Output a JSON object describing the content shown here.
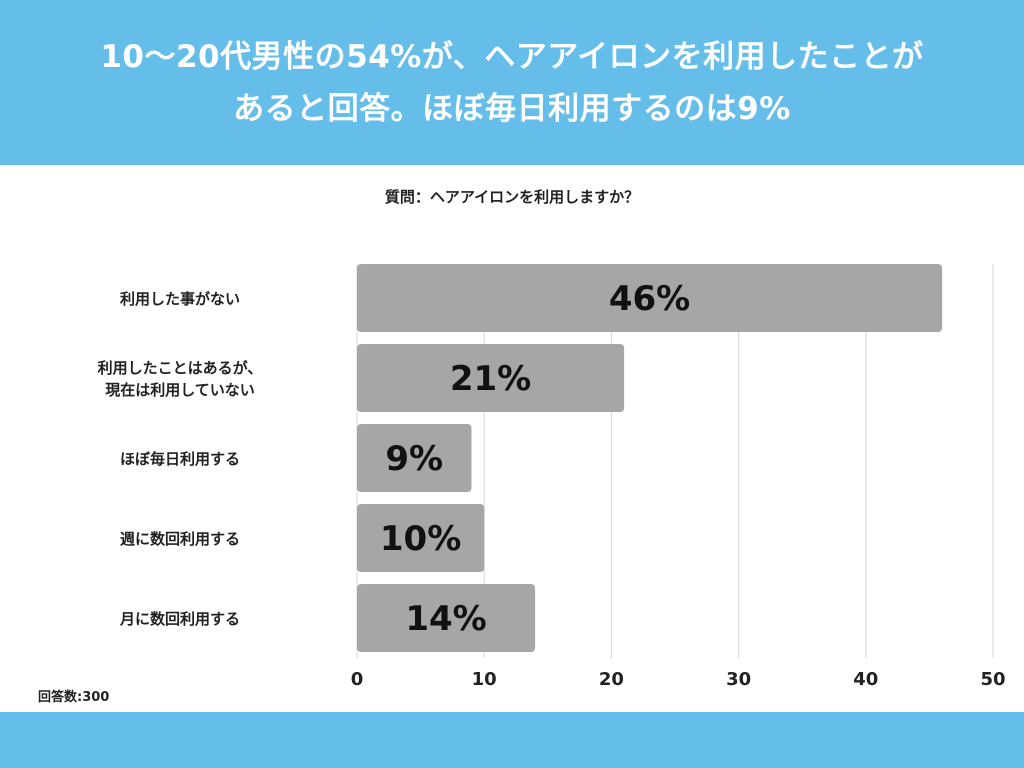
{
  "header": {
    "line1": "10〜20代男性の54%が、ヘアアイロンを利用したことが",
    "line2": "あると回答。ほぼ毎日利用するのは9%"
  },
  "footer_note": "回答数:300",
  "colors": {
    "accent": "#65bdea",
    "bar": "#a6a6a6"
  },
  "chart_data": {
    "type": "bar",
    "orientation": "horizontal",
    "title": "質問：ヘアアイロンを利用しますか？",
    "categories": [
      [
        "利用した事がない"
      ],
      [
        "利用したことはあるが、",
        "現在は利用していない"
      ],
      [
        "ほぼ毎日利用する"
      ],
      [
        "週に数回利用する"
      ],
      [
        "月に数回利用する"
      ]
    ],
    "values": [
      46,
      21,
      9,
      10,
      14
    ],
    "data_labels": [
      "46%",
      "21%",
      "9%",
      "10%",
      "14%"
    ],
    "xlim": [
      0,
      50
    ],
    "xticks": [
      0,
      10,
      20,
      30,
      40,
      50
    ],
    "grid": true,
    "legend": "none"
  }
}
